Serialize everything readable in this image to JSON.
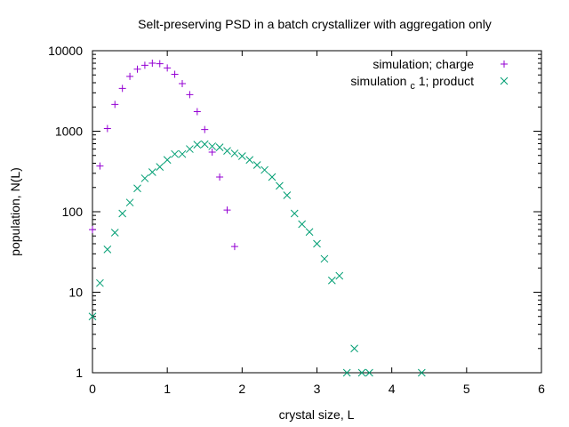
{
  "chart_data": {
    "type": "scatter",
    "title": "Selt-preserving PSD in a batch crystallizer with aggregation only",
    "xlabel": "crystal size, L",
    "ylabel": "population, N(L)",
    "xlim": [
      0,
      6
    ],
    "ylim": [
      1,
      10000
    ],
    "yscale": "log",
    "legend_position": "top-right",
    "x_ticks": [
      0,
      1,
      2,
      3,
      4,
      5,
      6
    ],
    "y_ticks": [
      1,
      10,
      100,
      1000,
      10000
    ],
    "y_tick_labels": [
      "1",
      "10",
      "100",
      "1000",
      "10000"
    ],
    "series": [
      {
        "name_parts": [
          "simulation; charge"
        ],
        "marker": "plus",
        "color": "#9400d3",
        "points": [
          [
            0.0,
            60
          ],
          [
            0.1,
            370
          ],
          [
            0.2,
            1080
          ],
          [
            0.3,
            2150
          ],
          [
            0.4,
            3400
          ],
          [
            0.5,
            4800
          ],
          [
            0.6,
            5900
          ],
          [
            0.7,
            6600
          ],
          [
            0.8,
            7000
          ],
          [
            0.9,
            6900
          ],
          [
            1.0,
            6100
          ],
          [
            1.1,
            5100
          ],
          [
            1.2,
            3900
          ],
          [
            1.3,
            2850
          ],
          [
            1.4,
            1750
          ],
          [
            1.5,
            1050
          ],
          [
            1.6,
            550
          ],
          [
            1.7,
            270
          ],
          [
            1.8,
            105
          ],
          [
            1.9,
            37
          ]
        ]
      },
      {
        "name_parts": [
          "simulation",
          "c",
          "1; product"
        ],
        "marker": "cross",
        "color": "#009e73",
        "points": [
          [
            0.0,
            5
          ],
          [
            0.1,
            13
          ],
          [
            0.2,
            34
          ],
          [
            0.3,
            55
          ],
          [
            0.4,
            95
          ],
          [
            0.5,
            130
          ],
          [
            0.6,
            195
          ],
          [
            0.7,
            260
          ],
          [
            0.8,
            310
          ],
          [
            0.9,
            360
          ],
          [
            1.0,
            440
          ],
          [
            1.1,
            520
          ],
          [
            1.2,
            520
          ],
          [
            1.3,
            600
          ],
          [
            1.4,
            680
          ],
          [
            1.5,
            690
          ],
          [
            1.6,
            650
          ],
          [
            1.7,
            630
          ],
          [
            1.8,
            570
          ],
          [
            1.9,
            530
          ],
          [
            2.0,
            490
          ],
          [
            2.1,
            440
          ],
          [
            2.2,
            380
          ],
          [
            2.3,
            330
          ],
          [
            2.4,
            270
          ],
          [
            2.5,
            210
          ],
          [
            2.6,
            160
          ],
          [
            2.7,
            95
          ],
          [
            2.8,
            70
          ],
          [
            2.9,
            56
          ],
          [
            3.0,
            40
          ],
          [
            3.1,
            26
          ],
          [
            3.2,
            14
          ],
          [
            3.3,
            16
          ],
          [
            3.4,
            1
          ],
          [
            3.5,
            2
          ],
          [
            3.6,
            1
          ],
          [
            3.7,
            1
          ],
          [
            4.4,
            1
          ]
        ]
      }
    ]
  }
}
